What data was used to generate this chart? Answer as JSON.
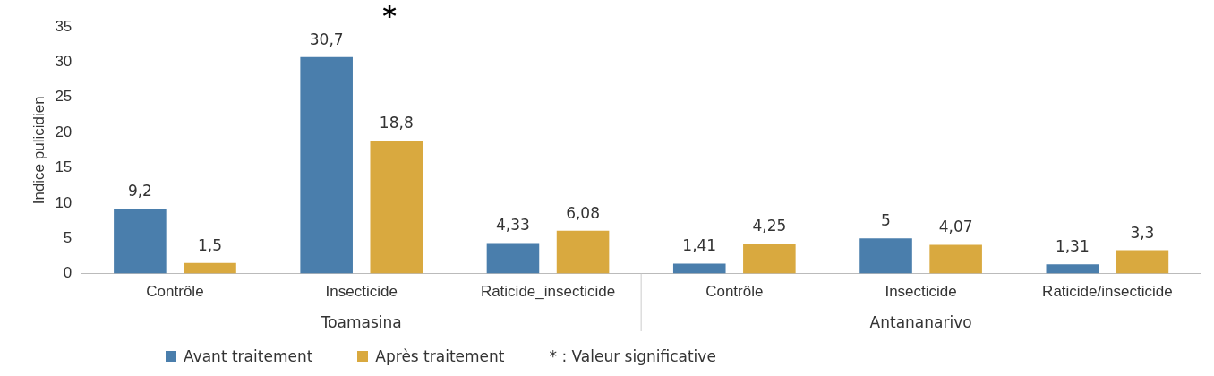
{
  "chart_data": {
    "type": "bar",
    "ylabel": "Indice pulicidien",
    "categories": [
      "Contrôle",
      "Insecticide",
      "Raticide_insecticide",
      "Contrôle",
      "Insecticide",
      "Raticide/insecticide"
    ],
    "series": [
      {
        "name": "Avant traitement",
        "color": "#4a7eac",
        "values": [
          9.2,
          30.7,
          4.33,
          1.41,
          5,
          1.31
        ],
        "value_labels": [
          "9,2",
          "30,7",
          "4,33",
          "1,41",
          "5",
          "1,31"
        ]
      },
      {
        "name": "Après traitement",
        "color": "#d9a93f",
        "values": [
          1.5,
          18.8,
          6.08,
          4.25,
          4.07,
          3.3
        ],
        "value_labels": [
          "1,5",
          "18,8",
          "6,08",
          "4,25",
          "4,07",
          "3,3"
        ]
      }
    ],
    "ylim": [
      0,
      35
    ],
    "yticks": [
      0,
      5,
      10,
      15,
      20,
      25,
      30,
      35
    ],
    "grid": false,
    "legend": "bottom",
    "annotations": [
      "*",
      "Toamasina",
      "Antananarivo",
      "* : Valeur significative"
    ]
  }
}
